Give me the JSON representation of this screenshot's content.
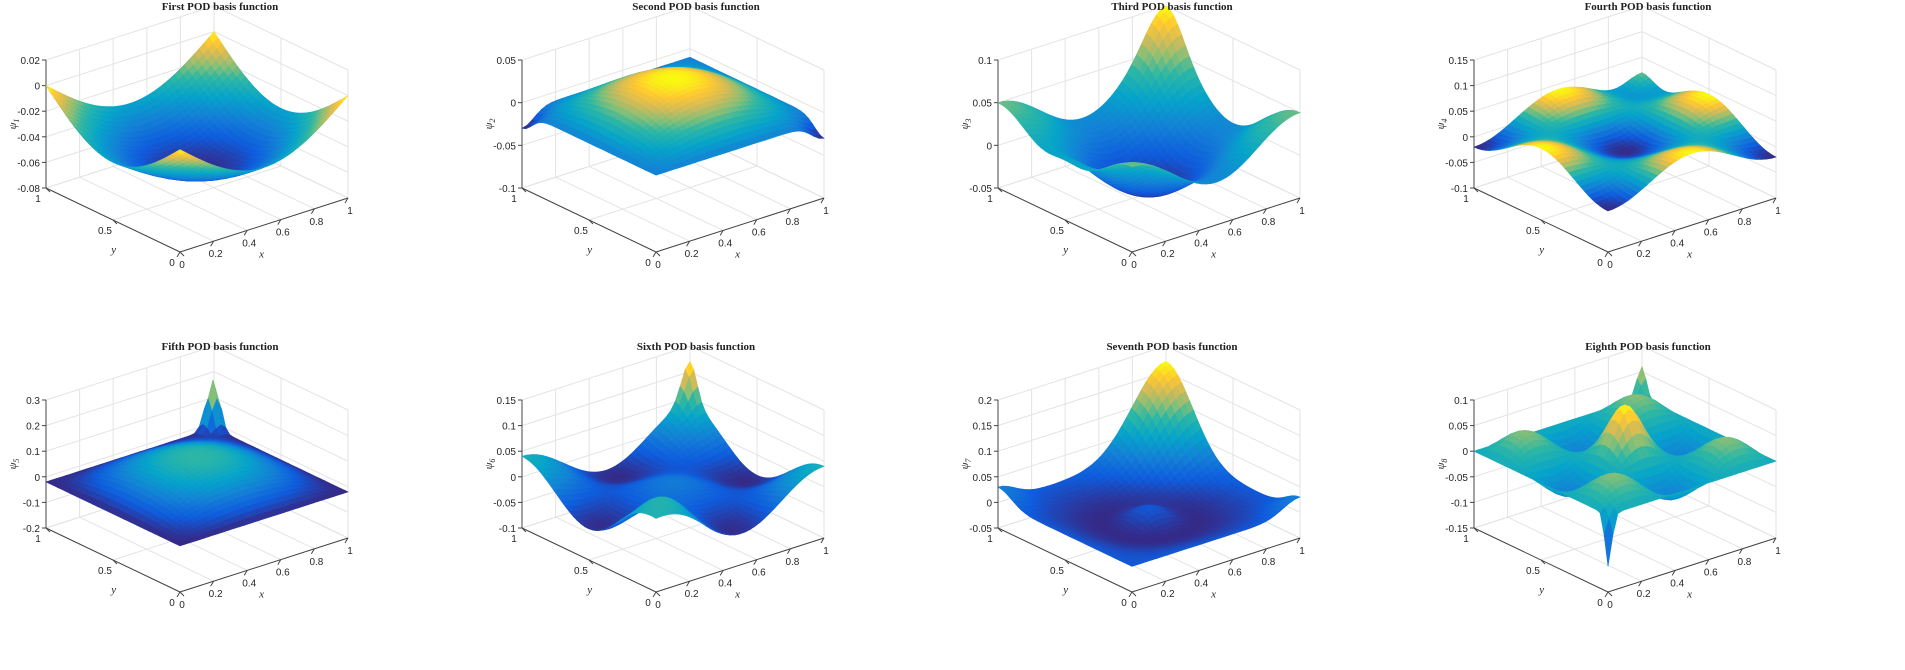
{
  "chart_data": [
    {
      "type": "surface",
      "title": "First POD basis function",
      "xlabel": "x",
      "ylabel": "y",
      "zlabel": "ψ",
      "zlabel_sub": "1",
      "xticks": [
        "0",
        "0.2",
        "0.4",
        "0.6",
        "0.8",
        "1"
      ],
      "yticks": [
        "0",
        "0.5",
        "1"
      ],
      "zticks": [
        "-0.08",
        "-0.06",
        "-0.04",
        "-0.02",
        "0",
        "0.02"
      ],
      "zlim": [
        -0.08,
        0.02
      ],
      "xlim": [
        0,
        1
      ],
      "ylim": [
        0,
        1
      ],
      "colormap": "parula",
      "grid": true
    },
    {
      "type": "surface",
      "title": "Second POD basis function",
      "xlabel": "x",
      "ylabel": "y",
      "zlabel": "ψ",
      "zlabel_sub": "2",
      "xticks": [
        "0",
        "0.2",
        "0.4",
        "0.6",
        "0.8",
        "1"
      ],
      "yticks": [
        "0",
        "0.5",
        "1"
      ],
      "zticks": [
        "-0.1",
        "-0.05",
        "0",
        "0.05"
      ],
      "zlim": [
        -0.1,
        0.05
      ],
      "xlim": [
        0,
        1
      ],
      "ylim": [
        0,
        1
      ],
      "colormap": "parula",
      "grid": true
    },
    {
      "type": "surface",
      "title": "Third POD basis function",
      "xlabel": "x",
      "ylabel": "y",
      "zlabel": "ψ",
      "zlabel_sub": "3",
      "xticks": [
        "0",
        "0.2",
        "0.4",
        "0.6",
        "0.8",
        "1"
      ],
      "yticks": [
        "0",
        "0.5",
        "1"
      ],
      "zticks": [
        "-0.05",
        "0",
        "0.05",
        "0.1"
      ],
      "zlim": [
        -0.05,
        0.1
      ],
      "xlim": [
        0,
        1
      ],
      "ylim": [
        0,
        1
      ],
      "colormap": "parula",
      "grid": true
    },
    {
      "type": "surface",
      "title": "Fourth POD basis function",
      "xlabel": "x",
      "ylabel": "y",
      "zlabel": "ψ",
      "zlabel_sub": "4",
      "xticks": [
        "0",
        "0.2",
        "0.4",
        "0.6",
        "0.8",
        "1"
      ],
      "yticks": [
        "0",
        "0.5",
        "1"
      ],
      "zticks": [
        "-0.1",
        "-0.05",
        "0",
        "0.05",
        "0.1",
        "0.15"
      ],
      "zlim": [
        -0.1,
        0.15
      ],
      "xlim": [
        0,
        1
      ],
      "ylim": [
        0,
        1
      ],
      "colormap": "parula",
      "grid": true
    },
    {
      "type": "surface",
      "title": "Fifth POD basis function",
      "xlabel": "x",
      "ylabel": "y",
      "zlabel": "ψ",
      "zlabel_sub": "5",
      "xticks": [
        "0",
        "0.2",
        "0.4",
        "0.6",
        "0.8",
        "1"
      ],
      "yticks": [
        "0",
        "0.5",
        "1"
      ],
      "zticks": [
        "-0.2",
        "-0.1",
        "0",
        "0.1",
        "0.2",
        "0.3"
      ],
      "zlim": [
        -0.2,
        0.3
      ],
      "xlim": [
        0,
        1
      ],
      "ylim": [
        0,
        1
      ],
      "colormap": "parula",
      "grid": true
    },
    {
      "type": "surface",
      "title": "Sixth POD basis function",
      "xlabel": "x",
      "ylabel": "y",
      "zlabel": "ψ",
      "zlabel_sub": "6",
      "xticks": [
        "0",
        "0.2",
        "0.4",
        "0.6",
        "0.8",
        "1"
      ],
      "yticks": [
        "0",
        "0.5",
        "1"
      ],
      "zticks": [
        "-0.1",
        "-0.05",
        "0",
        "0.05",
        "0.1",
        "0.15"
      ],
      "zlim": [
        -0.1,
        0.15
      ],
      "xlim": [
        0,
        1
      ],
      "ylim": [
        0,
        1
      ],
      "colormap": "parula",
      "grid": true
    },
    {
      "type": "surface",
      "title": "Seventh POD basis function",
      "xlabel": "x",
      "ylabel": "y",
      "zlabel": "ψ",
      "zlabel_sub": "7",
      "xticks": [
        "0",
        "0.2",
        "0.4",
        "0.6",
        "0.8",
        "1"
      ],
      "yticks": [
        "0",
        "0.5",
        "1"
      ],
      "zticks": [
        "-0.05",
        "0",
        "0.05",
        "0.1",
        "0.15",
        "0.2"
      ],
      "zlim": [
        -0.05,
        0.2
      ],
      "xlim": [
        0,
        1
      ],
      "ylim": [
        0,
        1
      ],
      "colormap": "parula",
      "grid": true
    },
    {
      "type": "surface",
      "title": "Eighth POD basis function",
      "xlabel": "x",
      "ylabel": "y",
      "zlabel": "ψ",
      "zlabel_sub": "8",
      "xticks": [
        "0",
        "0.2",
        "0.4",
        "0.6",
        "0.8",
        "1"
      ],
      "yticks": [
        "0",
        "0.5",
        "1"
      ],
      "zticks": [
        "-0.15",
        "-0.1",
        "-0.05",
        "0",
        "0.05",
        "0.1"
      ],
      "zlim": [
        -0.15,
        0.1
      ],
      "xlim": [
        0,
        1
      ],
      "ylim": [
        0,
        1
      ],
      "colormap": "parula",
      "grid": true
    }
  ]
}
